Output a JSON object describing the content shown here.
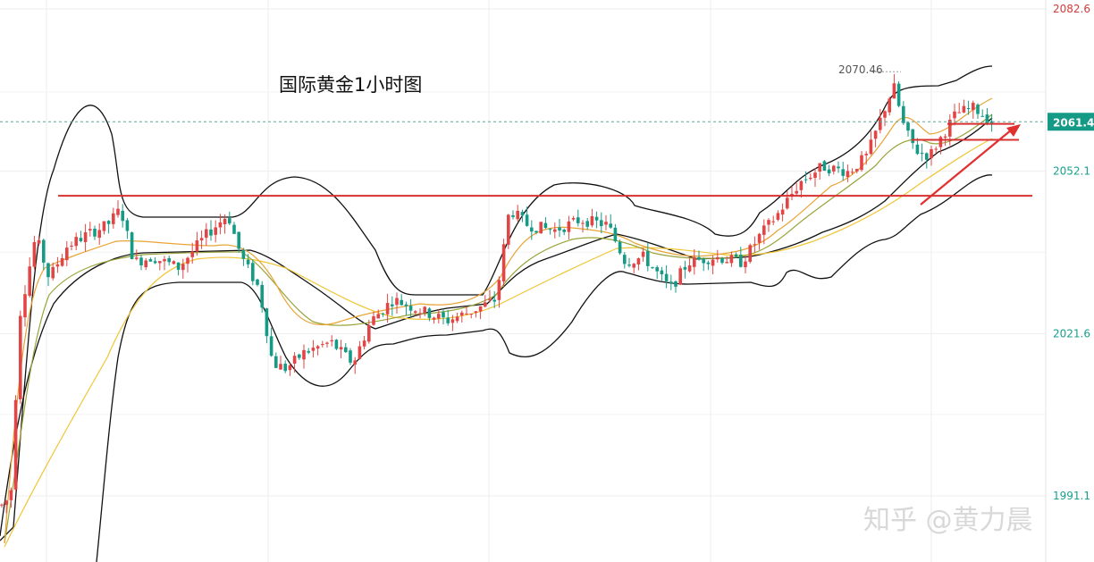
{
  "chart_data": {
    "type": "candlestick",
    "title": "国际黄金1小时图",
    "ylim": [
      1985,
      2082.6
    ],
    "y_ticks": [
      {
        "value": 2082.6,
        "label": "2082.6",
        "color": "#d23b3b"
      },
      {
        "value": 2052.1,
        "label": "2052.1",
        "color": "#18a08c"
      },
      {
        "value": 2021.6,
        "label": "2021.6",
        "color": "#18a08c"
      },
      {
        "value": 1991.1,
        "label": "1991.1",
        "color": "#18a08c"
      }
    ],
    "last_price": {
      "value": 2061.4,
      "label": "2061.4",
      "color": "#159a86"
    },
    "peak_annotation": {
      "value": 2070.46,
      "label": "2070.46"
    },
    "support_line": 2047.5,
    "resistance_levels": [
      2061.0,
      2058.0
    ],
    "grid": true,
    "colors": {
      "up": "#e24545",
      "down": "#159a86",
      "ma_orange": "#e8a437",
      "ma_olive": "#9aa43a",
      "ma_yellow": "#f0c534",
      "boll": "#111111",
      "trend_arrow": "#e03030",
      "support": "#d73030"
    }
  },
  "watermark": "知乎 @黄力晨"
}
